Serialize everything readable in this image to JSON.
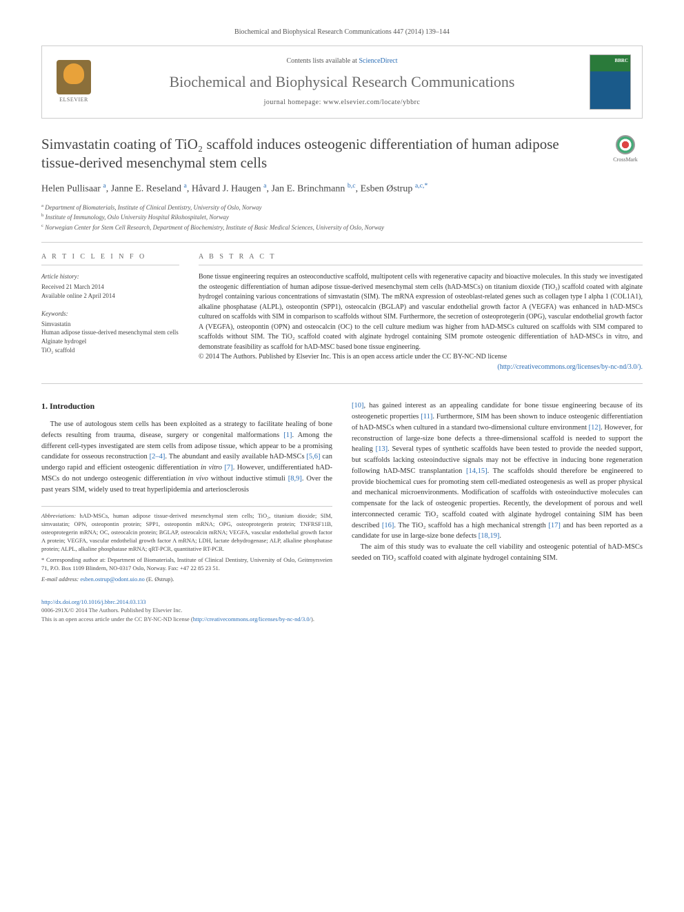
{
  "header": {
    "citation": "Biochemical and Biophysical Research Communications 447 (2014) 139–144"
  },
  "banner": {
    "publisher": "ELSEVIER",
    "contents_prefix": "Contents lists available at ",
    "contents_link": "ScienceDirect",
    "journal": "Biochemical and Biophysical Research Communications",
    "homepage_label": "journal homepage: ",
    "homepage_url": "www.elsevier.com/locate/ybbrc",
    "cover_label": "BBRC"
  },
  "title": "Simvastatin coating of TiO₂ scaffold induces osteogenic differentiation of human adipose tissue-derived mesenchymal stem cells",
  "crossmark": "CrossMark",
  "authors_html": "Helen Pullisaar <sup>a</sup>, Janne E. Reseland <sup>a</sup>, Håvard J. Haugen <sup>a</sup>, Jan E. Brinchmann <sup>b,c</sup>, Esben Østrup <sup>a,c,*</sup>",
  "affiliations": [
    "a Department of Biomaterials, Institute of Clinical Dentistry, University of Oslo, Norway",
    "b Institute of Immunology, Oslo University Hospital Rikshospitalet, Norway",
    "c Norwegian Center for Stem Cell Research, Department of Biochemistry, Institute of Basic Medical Sciences, University of Oslo, Norway"
  ],
  "article_info": {
    "heading": "A R T I C L E   I N F O",
    "history_label": "Article history:",
    "received": "Received 21 March 2014",
    "online": "Available online 2 April 2014",
    "keywords_label": "Keywords:",
    "keywords": [
      "Simvastatin",
      "Human adipose tissue-derived mesenchymal stem cells",
      "Alginate hydrogel",
      "TiO₂ scaffold"
    ]
  },
  "abstract": {
    "heading": "A B S T R A C T",
    "text": "Bone tissue engineering requires an osteoconductive scaffold, multipotent cells with regenerative capacity and bioactive molecules. In this study we investigated the osteogenic differentiation of human adipose tissue-derived mesenchymal stem cells (hAD-MSCs) on titanium dioxide (TiO₂) scaffold coated with alginate hydrogel containing various concentrations of simvastatin (SIM). The mRNA expression of osteoblast-related genes such as collagen type I alpha 1 (COL1A1), alkaline phosphatase (ALPL), osteopontin (SPP1), osteocalcin (BGLAP) and vascular endothelial growth factor A (VEGFA) was enhanced in hAD-MSCs cultured on scaffolds with SIM in comparison to scaffolds without SIM. Furthermore, the secretion of osteoprotegerin (OPG), vascular endothelial growth factor A (VEGFA), osteopontin (OPN) and osteocalcin (OC) to the cell culture medium was higher from hAD-MSCs cultured on scaffolds with SIM compared to scaffolds without SIM. The TiO₂ scaffold coated with alginate hydrogel containing SIM promote osteogenic differentiation of hAD-MSCs in vitro, and demonstrate feasibility as scaffold for hAD-MSC based bone tissue engineering.",
    "copyright": "© 2014 The Authors. Published by Elsevier Inc. This is an open access article under the CC BY-NC-ND license",
    "license_url": "(http://creativecommons.org/licenses/by-nc-nd/3.0/)."
  },
  "intro": {
    "heading": "1. Introduction",
    "col1_p1": "The use of autologous stem cells has been exploited as a strategy to facilitate healing of bone defects resulting from trauma, disease, surgery or congenital malformations [1]. Among the different cell-types investigated are stem cells from adipose tissue, which appear to be a promising candidate for osseous reconstruction [2–4]. The abundant and easily available hAD-MSCs [5,6] can undergo rapid and efficient osteogenic differentiation in vitro [7]. However, undifferentiated hAD-MSCs do not undergo osteogenic differentiation in vivo without inductive stimuli [8,9]. Over the past years SIM, widely used to treat hyperlipidemia and arteriosclerosis",
    "col2_p1": "[10], has gained interest as an appealing candidate for bone tissue engineering because of its osteogenetic properties [11]. Furthermore, SIM has been shown to induce osteogenic differentiation of hAD-MSCs when cultured in a standard two-dimensional culture environment [12]. However, for reconstruction of large-size bone defects a three-dimensional scaffold is needed to support the healing [13]. Several types of synthetic scaffolds have been tested to provide the needed support, but scaffolds lacking osteoinductive signals may not be effective in inducing bone regeneration following hAD-MSC transplantation [14,15]. The scaffolds should therefore be engineered to provide biochemical cues for promoting stem cell-mediated osteogenesis as well as proper physical and mechanical microenvironments. Modification of scaffolds with osteoinductive molecules can compensate for the lack of osteogenic properties. Recently, the development of porous and well interconnected ceramic TiO₂ scaffold coated with alginate hydrogel containing SIM has been described [16]. The TiO₂ scaffold has a high mechanical strength [17] and has been reported as a candidate for use in large-size bone defects [18,19].",
    "col2_p2": "The aim of this study was to evaluate the cell viability and osteogenic potential of hAD-MSCs seeded on TiO₂ scaffold coated with alginate hydrogel containing SIM."
  },
  "footnotes": {
    "abbrev_label": "Abbreviations:",
    "abbrev": "hAD-MSCs, human adipose tissue-derived mesenchymal stem cells; TiO₂, titanium dioxide; SIM, simvastatin; OPN, osteopontin protein; SPP1, osteopontin mRNA; OPG, osteoprotegerin protein; TNFRSF11B, osteoprotegerin mRNA; OC, osteocalcin protein; BGLAP, osteocalcin mRNA; VEGFA, vascular endothelial growth factor A protein; VEGFA, vascular endothelial growth factor A mRNA; LDH, lactate dehydrogenase; ALP, alkaline phosphatase protein; ALPL, alkaline phosphatase mRNA; qRT-PCR, quantitative RT-PCR.",
    "corr_label": "* Corresponding author at:",
    "corr": "Department of Biomaterials, Institute of Clinical Dentistry, University of Oslo, Geitmyrsveien 71, P.O. Box 1109 Blindern, NO-0317 Oslo, Norway. Fax: +47 22 85 23 51.",
    "email_label": "E-mail address:",
    "email": "esben.ostrup@odont.uio.no",
    "email_person": "(E. Østrup)."
  },
  "footer": {
    "doi": "http://dx.doi.org/10.1016/j.bbrc.2014.03.133",
    "issn_line": "0006-291X/© 2014 The Authors. Published by Elsevier Inc.",
    "license_line": "This is an open access article under the CC BY-NC-ND license (",
    "license_url": "http://creativecommons.org/licenses/by-nc-nd/3.0/",
    "license_close": ")."
  },
  "colors": {
    "link": "#2a6db5",
    "text": "#333333",
    "muted": "#666666",
    "border": "#cccccc"
  }
}
